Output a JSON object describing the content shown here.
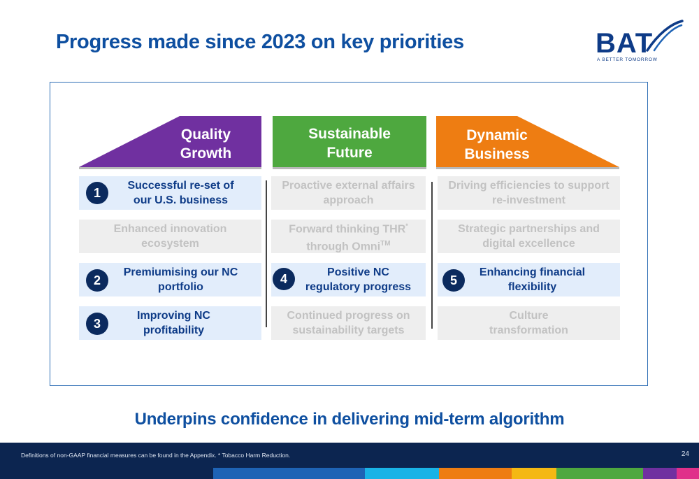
{
  "header": {
    "title": "Progress made since 2023 on key priorities",
    "logo_word": "BAT",
    "logo_tagline": "A BETTER TOMORROW"
  },
  "columns": [
    {
      "title_line1": "Quality",
      "title_line2": "Growth",
      "color": "#7030a0"
    },
    {
      "title_line1": "Sustainable",
      "title_line2": "Future",
      "color": "#4ea83f"
    },
    {
      "title_line1": "Dynamic",
      "title_line2": "Business",
      "color": "#ee7d12"
    }
  ],
  "cells": {
    "c1r1": {
      "line1": "Successful re-set of",
      "line2": "our U.S. business",
      "number": "1"
    },
    "c1r2": {
      "line1": "Enhanced innovation",
      "line2": "ecosystem"
    },
    "c1r3": {
      "line1": "Premiumising our NC",
      "line2": "portfolio",
      "number": "2"
    },
    "c1r4": {
      "line1": "Improving NC",
      "line2": "profitability",
      "number": "3"
    },
    "c2r1": {
      "line1": "Proactive external affairs",
      "line2": "approach"
    },
    "c2r2": {
      "line1": "Forward thinking THR",
      "line1_sup": "*",
      "line2": "through Omni",
      "line2_sup": "TM"
    },
    "c2r3": {
      "line1": "Positive NC",
      "line2": "regulatory progress",
      "number": "4"
    },
    "c2r4": {
      "line1": "Continued progress on",
      "line2": "sustainability targets"
    },
    "c3r1": {
      "line1": "Driving efficiencies to support",
      "line2": "re-investment"
    },
    "c3r2": {
      "line1": "Strategic partnerships and",
      "line2": "digital excellence"
    },
    "c3r3": {
      "line1": "Enhancing financial",
      "line2": "flexibility",
      "number": "5"
    },
    "c3r4": {
      "line1": "Culture",
      "line2": "transformation"
    }
  },
  "tagline": "Underpins confidence in delivering mid-term algorithm",
  "footer": {
    "note": "Definitions of non-GAAP financial measures can be found in the Appendix. * Tobacco Harm Reduction.",
    "page": "24"
  },
  "colors": {
    "title_blue": "#0e4fa0",
    "navy": "#0c2550",
    "badge": "#0b2a5e",
    "highlight_cell": "#e2edfb",
    "muted_cell": "#eeeeee",
    "colorbar": [
      "#0c2550",
      "#1e63b5",
      "#19b3e6",
      "#ee7d12",
      "#f4b813",
      "#4ea83f",
      "#7030a0",
      "#e0308a"
    ]
  }
}
